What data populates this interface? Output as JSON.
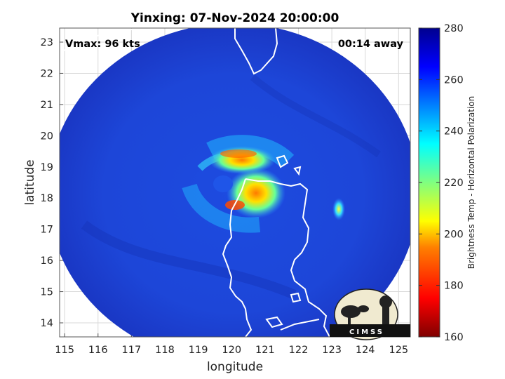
{
  "title": "Yinxing: 07-Nov-2024 20:00:00",
  "annotations": {
    "vmax": "Vmax: 96 kts",
    "time_away": "00:14 away"
  },
  "logo_text": "CIMSS",
  "chart_data": {
    "type": "heatmap",
    "xlabel": "longitude",
    "ylabel": "latitude",
    "xlim": [
      114.85,
      125.35
    ],
    "ylim": [
      13.55,
      23.45
    ],
    "xticks": [
      115,
      116,
      117,
      118,
      119,
      120,
      121,
      122,
      123,
      124,
      125
    ],
    "yticks": [
      14,
      15,
      16,
      17,
      18,
      19,
      20,
      21,
      22,
      23
    ],
    "grid": true,
    "colorbar": {
      "label": "Brightness Temp - Horizontal Polarization",
      "range": [
        160,
        280
      ],
      "ticks": [
        160,
        180,
        200,
        220,
        240,
        260,
        280
      ]
    },
    "swath": {
      "center_lon": 120.05,
      "center_lat": 18.15,
      "radius_lon": 5.55,
      "radius_lat": 5.45,
      "background_value": 265
    },
    "storm_center": {
      "lon": 120.25,
      "lat": 18.55
    },
    "warm_features": [
      {
        "lon": 120.3,
        "lat": 19.35,
        "value": 200
      },
      {
        "lon": 120.0,
        "lat": 17.85,
        "value": 190
      },
      {
        "lon": 120.35,
        "lat": 17.95,
        "value": 175
      },
      {
        "lon": 123.2,
        "lat": 17.6,
        "value": 215
      }
    ]
  },
  "colors": {
    "colormap": [
      "#7f0000",
      "#ff0000",
      "#ff8000",
      "#ffff00",
      "#80ff80",
      "#00ffff",
      "#0080ff",
      "#0000ff",
      "#00008f"
    ],
    "background_blue": "#1a3fd6",
    "coastline": "#ffffff"
  }
}
